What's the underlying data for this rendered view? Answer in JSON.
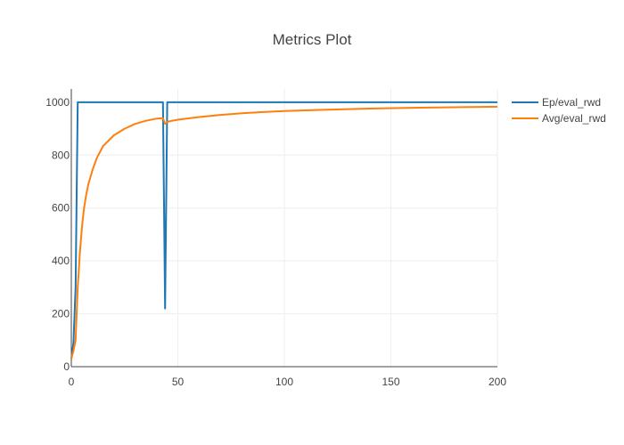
{
  "chart_data": {
    "type": "line",
    "title": "Metrics Plot",
    "xlabel": "",
    "ylabel": "",
    "xlim": [
      0,
      200
    ],
    "ylim": [
      0,
      1050
    ],
    "x_ticks": [
      0,
      50,
      100,
      150,
      200
    ],
    "y_ticks": [
      0,
      200,
      400,
      600,
      800,
      1000
    ],
    "grid": true,
    "legend_position": "top-right",
    "series": [
      {
        "name": "Ep/eval_rwd",
        "color": "#1f77b4",
        "x": [
          0,
          1,
          2,
          3,
          4,
          10,
          20,
          30,
          40,
          42,
          43,
          44,
          45,
          46,
          50,
          100,
          150,
          200
        ],
        "y": [
          30,
          90,
          300,
          1000,
          1000,
          1000,
          1000,
          1000,
          1000,
          1000,
          1000,
          220,
          1000,
          1000,
          1000,
          1000,
          1000,
          1000
        ]
      },
      {
        "name": "Avg/eval_rwd",
        "color": "#ff7f0e",
        "x": [
          0,
          1,
          2,
          3,
          4,
          5,
          6,
          7,
          8,
          10,
          12,
          15,
          20,
          25,
          30,
          35,
          40,
          43,
          44,
          45,
          46,
          50,
          60,
          70,
          80,
          90,
          100,
          120,
          140,
          160,
          180,
          200
        ],
        "y": [
          30,
          60,
          100,
          300,
          430,
          530,
          600,
          650,
          690,
          745,
          790,
          835,
          875,
          900,
          918,
          930,
          938,
          940,
          918,
          925,
          928,
          934,
          944,
          952,
          958,
          963,
          967,
          972,
          976,
          979,
          981,
          983
        ]
      }
    ]
  }
}
